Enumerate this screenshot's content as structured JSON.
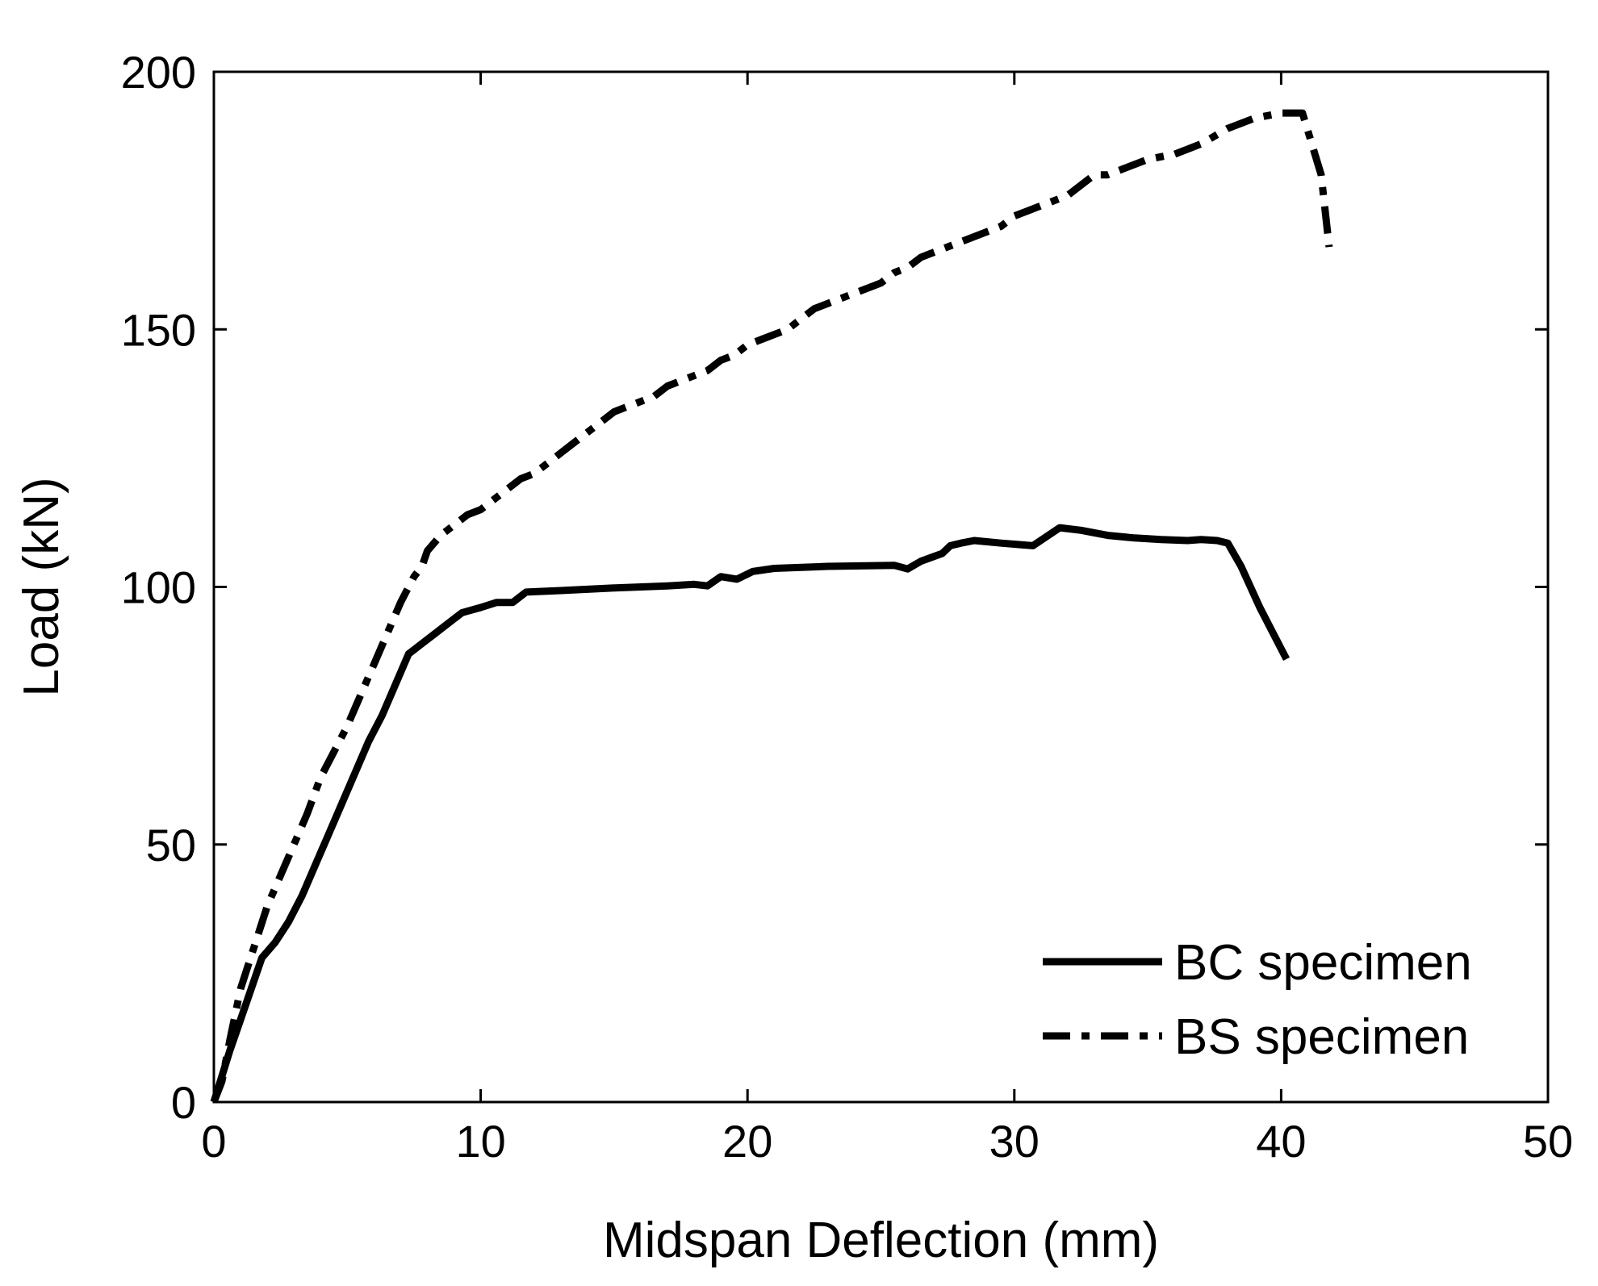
{
  "chart_data": {
    "type": "line",
    "title": "",
    "xlabel": "Midspan Deflection (mm)",
    "ylabel": "Load (kN)",
    "xlim": [
      0,
      50
    ],
    "ylim": [
      0,
      200
    ],
    "xticks": [
      0,
      10,
      20,
      30,
      40,
      50
    ],
    "yticks": [
      0,
      50,
      100,
      150,
      200
    ],
    "grid": false,
    "legend_position": "bottom-right",
    "series": [
      {
        "name": "BC specimen",
        "style": "solid",
        "color": "#000000",
        "x": [
          0,
          0.3,
          0.6,
          1.0,
          1.4,
          1.8,
          2.3,
          2.8,
          3.3,
          3.8,
          4.3,
          4.8,
          5.3,
          5.8,
          6.3,
          6.8,
          7.3,
          7.8,
          8.3,
          8.8,
          9.3,
          10.0,
          10.6,
          11.2,
          11.7,
          13,
          15,
          17,
          18.0,
          18.5,
          19.0,
          19.6,
          20.2,
          21,
          23,
          25.5,
          26.0,
          26.5,
          27.3,
          27.6,
          28.0,
          28.5,
          29.5,
          30.7,
          31.7,
          32.5,
          33.5,
          34.5,
          35.5,
          36.5,
          37.0,
          37.6,
          38.0,
          38.5,
          39.2,
          40.2
        ],
        "y": [
          0,
          5,
          10,
          16,
          22,
          28,
          31,
          35,
          40,
          46,
          52,
          58,
          64,
          70,
          75,
          81,
          87,
          89,
          91,
          93,
          95,
          96,
          97,
          97,
          99,
          99.3,
          99.8,
          100.2,
          100.5,
          100.2,
          102,
          101.5,
          103,
          103.6,
          104,
          104.2,
          103.5,
          105,
          106.5,
          108,
          108.5,
          109,
          108.5,
          108,
          111.5,
          111,
          110,
          109.5,
          109.2,
          109,
          109.2,
          109,
          108.5,
          104,
          96,
          86
        ]
      },
      {
        "name": "BS specimen",
        "style": "dashdot",
        "color": "#000000",
        "x": [
          0,
          0.3,
          0.6,
          1.0,
          1.5,
          2.0,
          2.5,
          3.0,
          3.5,
          4.0,
          4.5,
          5.0,
          5.5,
          6.0,
          6.5,
          7.0,
          7.5,
          7.8,
          8.0,
          8.5,
          9.0,
          9.5,
          10.0,
          10.5,
          11.0,
          11.5,
          12.0,
          12.5,
          13.0,
          13.5,
          14.0,
          14.5,
          15.0,
          15.5,
          16.5,
          17.0,
          17.5,
          18.5,
          19.0,
          19.5,
          20.0,
          20.5,
          21.5,
          22.0,
          22.5,
          23.0,
          24.0,
          24.5,
          25.0,
          25.5,
          26.0,
          26.5,
          27.0,
          27.5,
          28.0,
          28.5,
          29.0,
          29.5,
          30.0,
          30.5,
          31.0,
          32.0,
          33.0,
          33.5,
          34.0,
          35.0,
          36.0,
          36.5,
          37.0,
          38.0,
          39.0,
          40.0,
          40.8,
          41.5,
          41.8
        ],
        "y": [
          0,
          4,
          12,
          22,
          30,
          38,
          44,
          50,
          56,
          63,
          68,
          73,
          79,
          85,
          91,
          97,
          102,
          104,
          107,
          110,
          112,
          114,
          115,
          117,
          119,
          121,
          122,
          124,
          126,
          128,
          130,
          132,
          134,
          135,
          137,
          139,
          140,
          142,
          144,
          145,
          147,
          148,
          150,
          152,
          154,
          155,
          157,
          158,
          159,
          161,
          162,
          164,
          165,
          166,
          167,
          168,
          169,
          170,
          172,
          173,
          174,
          176,
          180,
          180,
          181,
          183,
          184,
          185,
          186,
          189,
          191,
          192,
          192,
          180,
          166
        ]
      }
    ]
  }
}
